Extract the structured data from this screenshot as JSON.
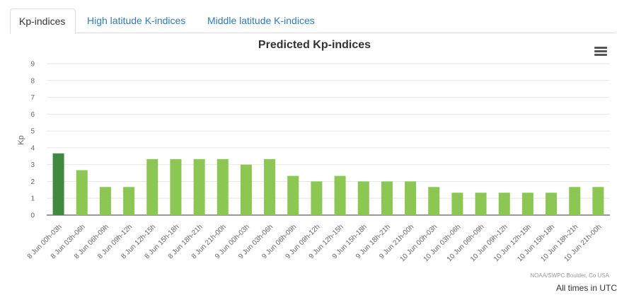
{
  "tabs": [
    {
      "label": "Kp-indices",
      "active": true
    },
    {
      "label": "High latitude K-indices",
      "active": false
    },
    {
      "label": "Middle latitude K-indices",
      "active": false
    }
  ],
  "menu_icon": "hamburger-menu-icon",
  "credit": "NOAA/SWPC Boulder, Co USA",
  "timezone_note": "All times in UTC",
  "colors": {
    "highlight_bar": "#3f8a3f",
    "bar": "#8cc653",
    "grid": "#e6e6e6",
    "axis_line": "#333333"
  },
  "chart_data": {
    "type": "bar",
    "title": "Predicted Kp-indices",
    "ylabel": "Kp",
    "xlabel": "",
    "ylim": [
      0,
      9
    ],
    "yticks": [
      0,
      1,
      2,
      3,
      4,
      5,
      6,
      7,
      8,
      9
    ],
    "grid": true,
    "legend": "none",
    "categories": [
      "8 Jun 00h-03h",
      "8 Jun 03h-06h",
      "8 Jun 06h-09h",
      "8 Jun 09h-12h",
      "8 Jun 12h-15h",
      "8 Jun 15h-18h",
      "8 Jun 18h-21h",
      "8 Jun 21h-00h",
      "9 Jun 00h-03h",
      "9 Jun 03h-06h",
      "9 Jun 06h-09h",
      "9 Jun 09h-12h",
      "9 Jun 12h-15h",
      "9 Jun 15h-18h",
      "9 Jun 18h-21h",
      "9 Jun 21h-00h",
      "10 Jun 00h-03h",
      "10 Jun 03h-06h",
      "10 Jun 06h-09h",
      "10 Jun 09h-12h",
      "10 Jun 12h-15h",
      "10 Jun 15h-18h",
      "10 Jun 18h-21h",
      "10 Jun 21h-00h"
    ],
    "values": [
      3.67,
      2.67,
      1.67,
      1.67,
      3.33,
      3.33,
      3.33,
      3.33,
      3.0,
      3.33,
      2.33,
      2.0,
      2.33,
      2.0,
      2.0,
      2.0,
      1.67,
      1.33,
      1.33,
      1.33,
      1.33,
      1.33,
      1.67,
      1.67
    ],
    "highlight_index": 0
  }
}
